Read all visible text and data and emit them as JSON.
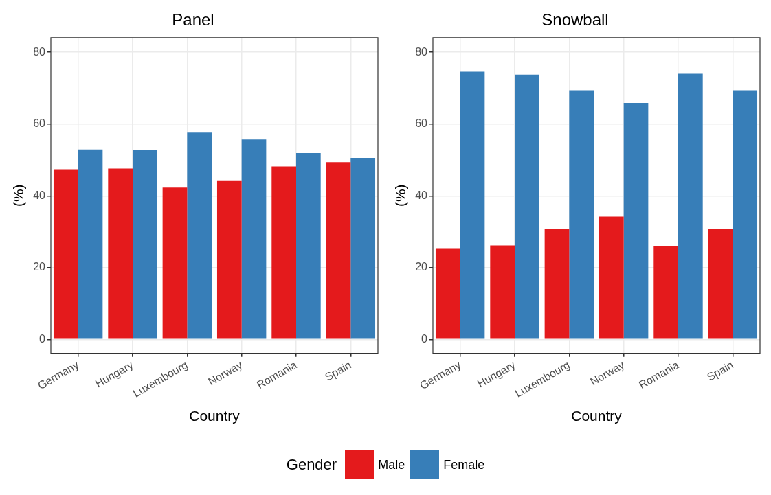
{
  "chart_data": [
    {
      "type": "bar",
      "title": "Panel",
      "xlabel": "Country",
      "ylabel": "(%)",
      "legend_title": "Gender",
      "legend": "bottom",
      "grid": true,
      "categories": [
        "Germany",
        "Hungary",
        "Luxembourg",
        "Norway",
        "Romania",
        "Spain"
      ],
      "ylim": [
        -3.9,
        84.1
      ],
      "yticks": [
        0,
        20,
        40,
        60,
        80
      ],
      "series": [
        {
          "name": "Male",
          "color": "#e41a1c",
          "values": [
            47.4,
            47.6,
            42.3,
            44.3,
            48.2,
            49.4
          ]
        },
        {
          "name": "Female",
          "color": "#377eb8",
          "values": [
            52.9,
            52.7,
            57.8,
            55.7,
            51.9,
            50.6
          ]
        }
      ]
    },
    {
      "type": "bar",
      "title": "Snowball",
      "xlabel": "Country",
      "ylabel": "(%)",
      "grid": true,
      "categories": [
        "Germany",
        "Hungary",
        "Luxembourg",
        "Norway",
        "Romania",
        "Spain"
      ],
      "ylim": [
        -3.9,
        84.1
      ],
      "yticks": [
        0,
        20,
        40,
        60,
        80
      ],
      "series": [
        {
          "color": "#e41a1c",
          "values": [
            25.4,
            26.2,
            30.7,
            34.2,
            26.0,
            30.7
          ]
        },
        {
          "color": "#377eb8",
          "values": [
            74.6,
            73.8,
            69.4,
            65.9,
            74.0,
            69.4
          ]
        }
      ]
    }
  ]
}
